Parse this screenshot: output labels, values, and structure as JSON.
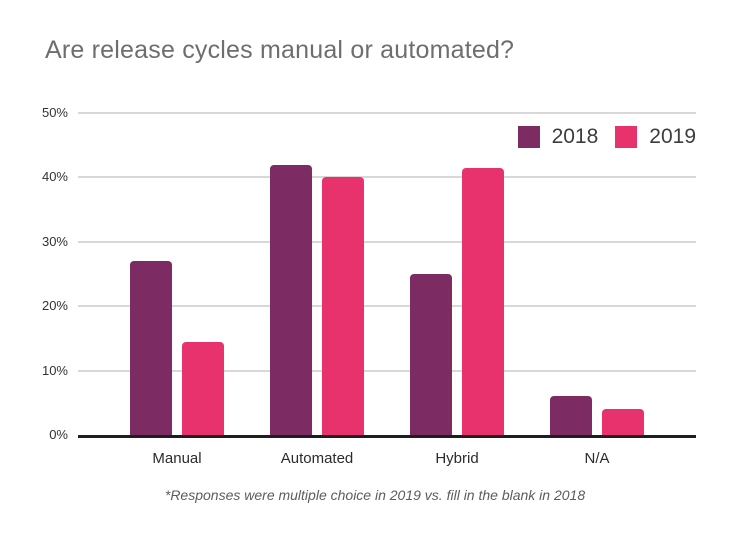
{
  "footnote": "*Responses were multiple choice in 2019 vs. fill in the blank in 2018",
  "chart_data": {
    "type": "bar",
    "title": "Are release cycles manual or automated?",
    "categories": [
      "Manual",
      "Automated",
      "Hybrid",
      "N/A"
    ],
    "series": [
      {
        "name": "2018",
        "color": "#7c2b63",
        "values": [
          27,
          42,
          25,
          6
        ]
      },
      {
        "name": "2019",
        "color": "#e8326e",
        "values": [
          14.5,
          40,
          41.5,
          4
        ]
      }
    ],
    "xlabel": "",
    "ylabel": "",
    "ylim": [
      0,
      50
    ],
    "yticks": [
      "0%",
      "10%",
      "20%",
      "30%",
      "40%",
      "50%"
    ],
    "grid": true,
    "legend_position": "top-right",
    "axis_color": "#1e1e1e",
    "gridline_color": "#d8d8d8",
    "title_color": "#6e6e6e"
  }
}
